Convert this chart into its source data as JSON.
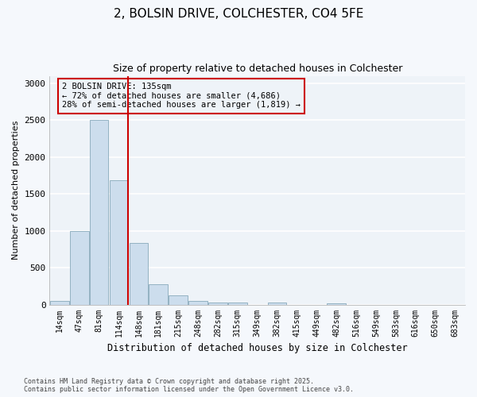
{
  "title_line1": "2, BOLSIN DRIVE, COLCHESTER, CO4 5FE",
  "title_line2": "Size of property relative to detached houses in Colchester",
  "xlabel": "Distribution of detached houses by size in Colchester",
  "ylabel": "Number of detached properties",
  "categories": [
    "14sqm",
    "47sqm",
    "81sqm",
    "114sqm",
    "148sqm",
    "181sqm",
    "215sqm",
    "248sqm",
    "282sqm",
    "315sqm",
    "349sqm",
    "382sqm",
    "415sqm",
    "449sqm",
    "482sqm",
    "516sqm",
    "549sqm",
    "583sqm",
    "616sqm",
    "650sqm",
    "683sqm"
  ],
  "values": [
    50,
    1000,
    2500,
    1680,
    830,
    275,
    120,
    50,
    30,
    30,
    0,
    30,
    0,
    0,
    20,
    0,
    0,
    0,
    0,
    0,
    0
  ],
  "bar_color": "#ccdded",
  "bar_edge_color": "#88aabb",
  "property_line_label": "2 BOLSIN DRIVE: 135sqm",
  "annotation_smaller": "← 72% of detached houses are smaller (4,686)",
  "annotation_larger": "28% of semi-detached houses are larger (1,819) →",
  "annotation_box_color": "#cc0000",
  "vline_color": "#cc0000",
  "vline_x": 3.45,
  "ylim": [
    0,
    3100
  ],
  "yticks": [
    0,
    500,
    1000,
    1500,
    2000,
    2500,
    3000
  ],
  "bg_color": "#f5f8fc",
  "plot_bg_color": "#eef3f8",
  "grid_color": "#ffffff",
  "footer_line1": "Contains HM Land Registry data © Crown copyright and database right 2025.",
  "footer_line2": "Contains public sector information licensed under the Open Government Licence v3.0."
}
